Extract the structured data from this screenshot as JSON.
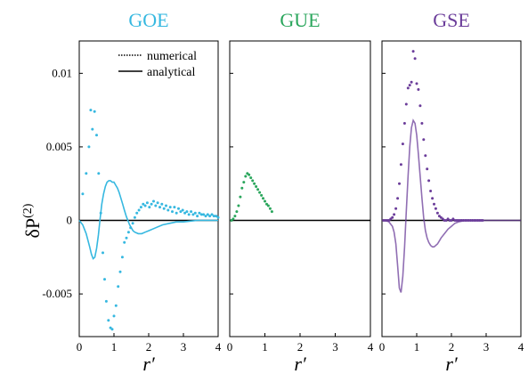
{
  "figure": {
    "ylabel": "δP",
    "ylabel_sup": "(2)",
    "legend": {
      "numerical": "numerical",
      "analytical": "analytical"
    }
  },
  "chart_data": {
    "type": "line",
    "ylim": [
      -0.0079,
      0.0122
    ],
    "xlim": [
      0,
      4
    ],
    "yticks": [
      -0.005,
      0,
      0.005,
      0.01
    ],
    "ytick_labels": [
      "-0.005",
      "0",
      "0.005",
      "0.01"
    ],
    "xticks": [
      0,
      1,
      2,
      3,
      4
    ],
    "xtick_labels": [
      "0",
      "1",
      "2",
      "3",
      "4"
    ],
    "legend_position": "top-right of first panel",
    "panels": [
      {
        "title": "GOE",
        "xlabel": "r′",
        "color": "#36b8e0",
        "series": [
          {
            "kind": "points",
            "x": [
              0.1,
              0.2,
              0.28,
              0.33,
              0.38,
              0.44,
              0.5,
              0.56,
              0.62,
              0.68,
              0.73,
              0.78,
              0.84,
              0.9,
              0.95,
              1.0,
              1.06,
              1.12,
              1.18,
              1.24,
              1.3,
              1.36,
              1.42,
              1.48,
              1.54,
              1.6,
              1.66,
              1.72,
              1.78,
              1.84,
              1.9,
              1.96,
              2.02,
              2.08,
              2.14,
              2.2,
              2.26,
              2.32,
              2.38,
              2.44,
              2.5,
              2.56,
              2.62,
              2.68,
              2.74,
              2.8,
              2.86,
              2.92,
              2.98,
              3.04,
              3.1,
              3.16,
              3.22,
              3.28,
              3.34,
              3.4,
              3.46,
              3.52,
              3.58,
              3.64,
              3.7,
              3.76,
              3.82,
              3.88,
              3.94,
              4.0
            ],
            "y": [
              0.0018,
              0.0032,
              0.005,
              0.0075,
              0.0062,
              0.0074,
              0.0058,
              0.0032,
              0.0005,
              -0.0022,
              -0.004,
              -0.0055,
              -0.0068,
              -0.0073,
              -0.0074,
              -0.0065,
              -0.0058,
              -0.0045,
              -0.0035,
              -0.0025,
              -0.0015,
              -0.0012,
              -0.0008,
              -0.0005,
              -0.0002,
              0.0002,
              0.0005,
              0.0007,
              0.0009,
              0.0011,
              0.001,
              0.0012,
              0.0009,
              0.0011,
              0.0013,
              0.001,
              0.0012,
              0.0009,
              0.0011,
              0.0008,
              0.001,
              0.0007,
              0.0009,
              0.0006,
              0.0009,
              0.0005,
              0.0008,
              0.0006,
              0.0007,
              0.0005,
              0.0006,
              0.0004,
              0.0006,
              0.0004,
              0.0005,
              0.0003,
              0.0005,
              0.0004,
              0.0004,
              0.0003,
              0.0004,
              0.0003,
              0.0004,
              0.0003,
              0.0003,
              0.0002
            ]
          },
          {
            "kind": "curve",
            "x": [
              0,
              0.1,
              0.2,
              0.3,
              0.35,
              0.4,
              0.45,
              0.5,
              0.55,
              0.6,
              0.65,
              0.7,
              0.75,
              0.8,
              0.85,
              0.9,
              0.95,
              1.0,
              1.05,
              1.1,
              1.15,
              1.2,
              1.25,
              1.3,
              1.35,
              1.4,
              1.45,
              1.5,
              1.55,
              1.6,
              1.7,
              1.8,
              1.9,
              2.0,
              2.2,
              2.4,
              2.6,
              2.8,
              3.0,
              3.2,
              3.4,
              3.6,
              3.8,
              4.0
            ],
            "y": [
              0,
              -0.0003,
              -0.0009,
              -0.0018,
              -0.0023,
              -0.0026,
              -0.0025,
              -0.0019,
              -0.001,
              0.0001,
              0.0011,
              0.0018,
              0.0023,
              0.0026,
              0.0027,
              0.0027,
              0.0026,
              0.0026,
              0.0024,
              0.0022,
              0.0019,
              0.0015,
              0.0011,
              0.0007,
              0.0003,
              0.0,
              -0.0003,
              -0.0005,
              -0.0007,
              -0.0008,
              -0.0009,
              -0.0009,
              -0.0008,
              -0.0007,
              -0.0005,
              -0.0003,
              -0.0002,
              -0.0001,
              -0.0001,
              -5e-05,
              0,
              0,
              0,
              0
            ]
          }
        ]
      },
      {
        "title": "GUE",
        "xlabel": "r′",
        "color": "#2aa65c",
        "series": [
          {
            "kind": "points",
            "x": [
              0.05,
              0.1,
              0.15,
              0.2,
              0.25,
              0.3,
              0.35,
              0.4,
              0.45,
              0.5,
              0.55,
              0.6,
              0.65,
              0.7,
              0.75,
              0.8,
              0.85,
              0.9,
              0.95,
              1.0,
              1.05,
              1.1,
              1.15,
              1.2
            ],
            "y": [
              0.0,
              0.0001,
              0.0003,
              0.0006,
              0.001,
              0.0016,
              0.0022,
              0.0026,
              0.003,
              0.0032,
              0.0031,
              0.0029,
              0.0027,
              0.0025,
              0.0023,
              0.0021,
              0.0019,
              0.0017,
              0.0015,
              0.0013,
              0.0011,
              0.001,
              0.0008,
              0.0006
            ]
          }
        ]
      },
      {
        "title": "GSE",
        "xlabel": "r′",
        "color": "#6b3d9a",
        "series": [
          {
            "kind": "points",
            "x": [
              0.05,
              0.1,
              0.15,
              0.2,
              0.25,
              0.3,
              0.35,
              0.4,
              0.45,
              0.5,
              0.55,
              0.6,
              0.65,
              0.7,
              0.75,
              0.8,
              0.85,
              0.9,
              0.95,
              1.0,
              1.05,
              1.1,
              1.15,
              1.2,
              1.25,
              1.3,
              1.35,
              1.4,
              1.45,
              1.5,
              1.55,
              1.6,
              1.65,
              1.7,
              1.75,
              1.8,
              1.85,
              1.9,
              1.95,
              2.0,
              2.05,
              2.1,
              2.15,
              2.2,
              2.25,
              2.3,
              2.35,
              2.4,
              2.45,
              2.5,
              2.55,
              2.6,
              2.65,
              2.7,
              2.75,
              2.8,
              2.85,
              2.9
            ],
            "y": [
              0,
              0,
              0,
              0,
              0.0001,
              0.0002,
              0.0004,
              0.0008,
              0.0015,
              0.0025,
              0.0038,
              0.0052,
              0.0066,
              0.0079,
              0.009,
              0.0092,
              0.0094,
              0.0115,
              0.011,
              0.0093,
              0.0089,
              0.0078,
              0.0066,
              0.0055,
              0.0044,
              0.0035,
              0.0027,
              0.002,
              0.0015,
              0.0011,
              0.0008,
              0.0005,
              0.0003,
              0.0002,
              0.0001,
              0.0,
              0.0,
              0.0001,
              0.0,
              0.0,
              0.0001,
              0.0,
              0.0,
              0.0,
              0.0,
              0.0,
              0.0,
              0.0,
              0.0,
              0.0,
              0.0,
              0.0,
              0.0,
              0.0,
              0.0,
              0.0,
              0.0,
              0.0
            ]
          },
          {
            "kind": "curve",
            "x": [
              0,
              0.1,
              0.2,
              0.3,
              0.35,
              0.4,
              0.45,
              0.5,
              0.55,
              0.6,
              0.65,
              0.7,
              0.75,
              0.8,
              0.85,
              0.9,
              0.95,
              1.0,
              1.05,
              1.1,
              1.15,
              1.2,
              1.25,
              1.3,
              1.35,
              1.4,
              1.45,
              1.5,
              1.55,
              1.6,
              1.65,
              1.7,
              1.8,
              1.9,
              2.0,
              2.1,
              2.2,
              2.4,
              2.6,
              2.8,
              3.0,
              3.2,
              3.4,
              3.6,
              3.8,
              4.0
            ],
            "y": [
              0,
              0,
              -0.0001,
              -0.0004,
              -0.0008,
              -0.0016,
              -0.0031,
              -0.0046,
              -0.0049,
              -0.0038,
              -0.0018,
              0.0006,
              0.003,
              0.005,
              0.0063,
              0.0068,
              0.0066,
              0.0058,
              0.0045,
              0.003,
              0.0015,
              0.0002,
              -0.0007,
              -0.0012,
              -0.0015,
              -0.0017,
              -0.0018,
              -0.0018,
              -0.0017,
              -0.0016,
              -0.0014,
              -0.0012,
              -0.0009,
              -0.0006,
              -0.0004,
              -0.0002,
              -0.0001,
              0,
              0,
              0,
              0,
              0,
              0,
              0,
              0,
              0
            ]
          }
        ]
      }
    ]
  }
}
